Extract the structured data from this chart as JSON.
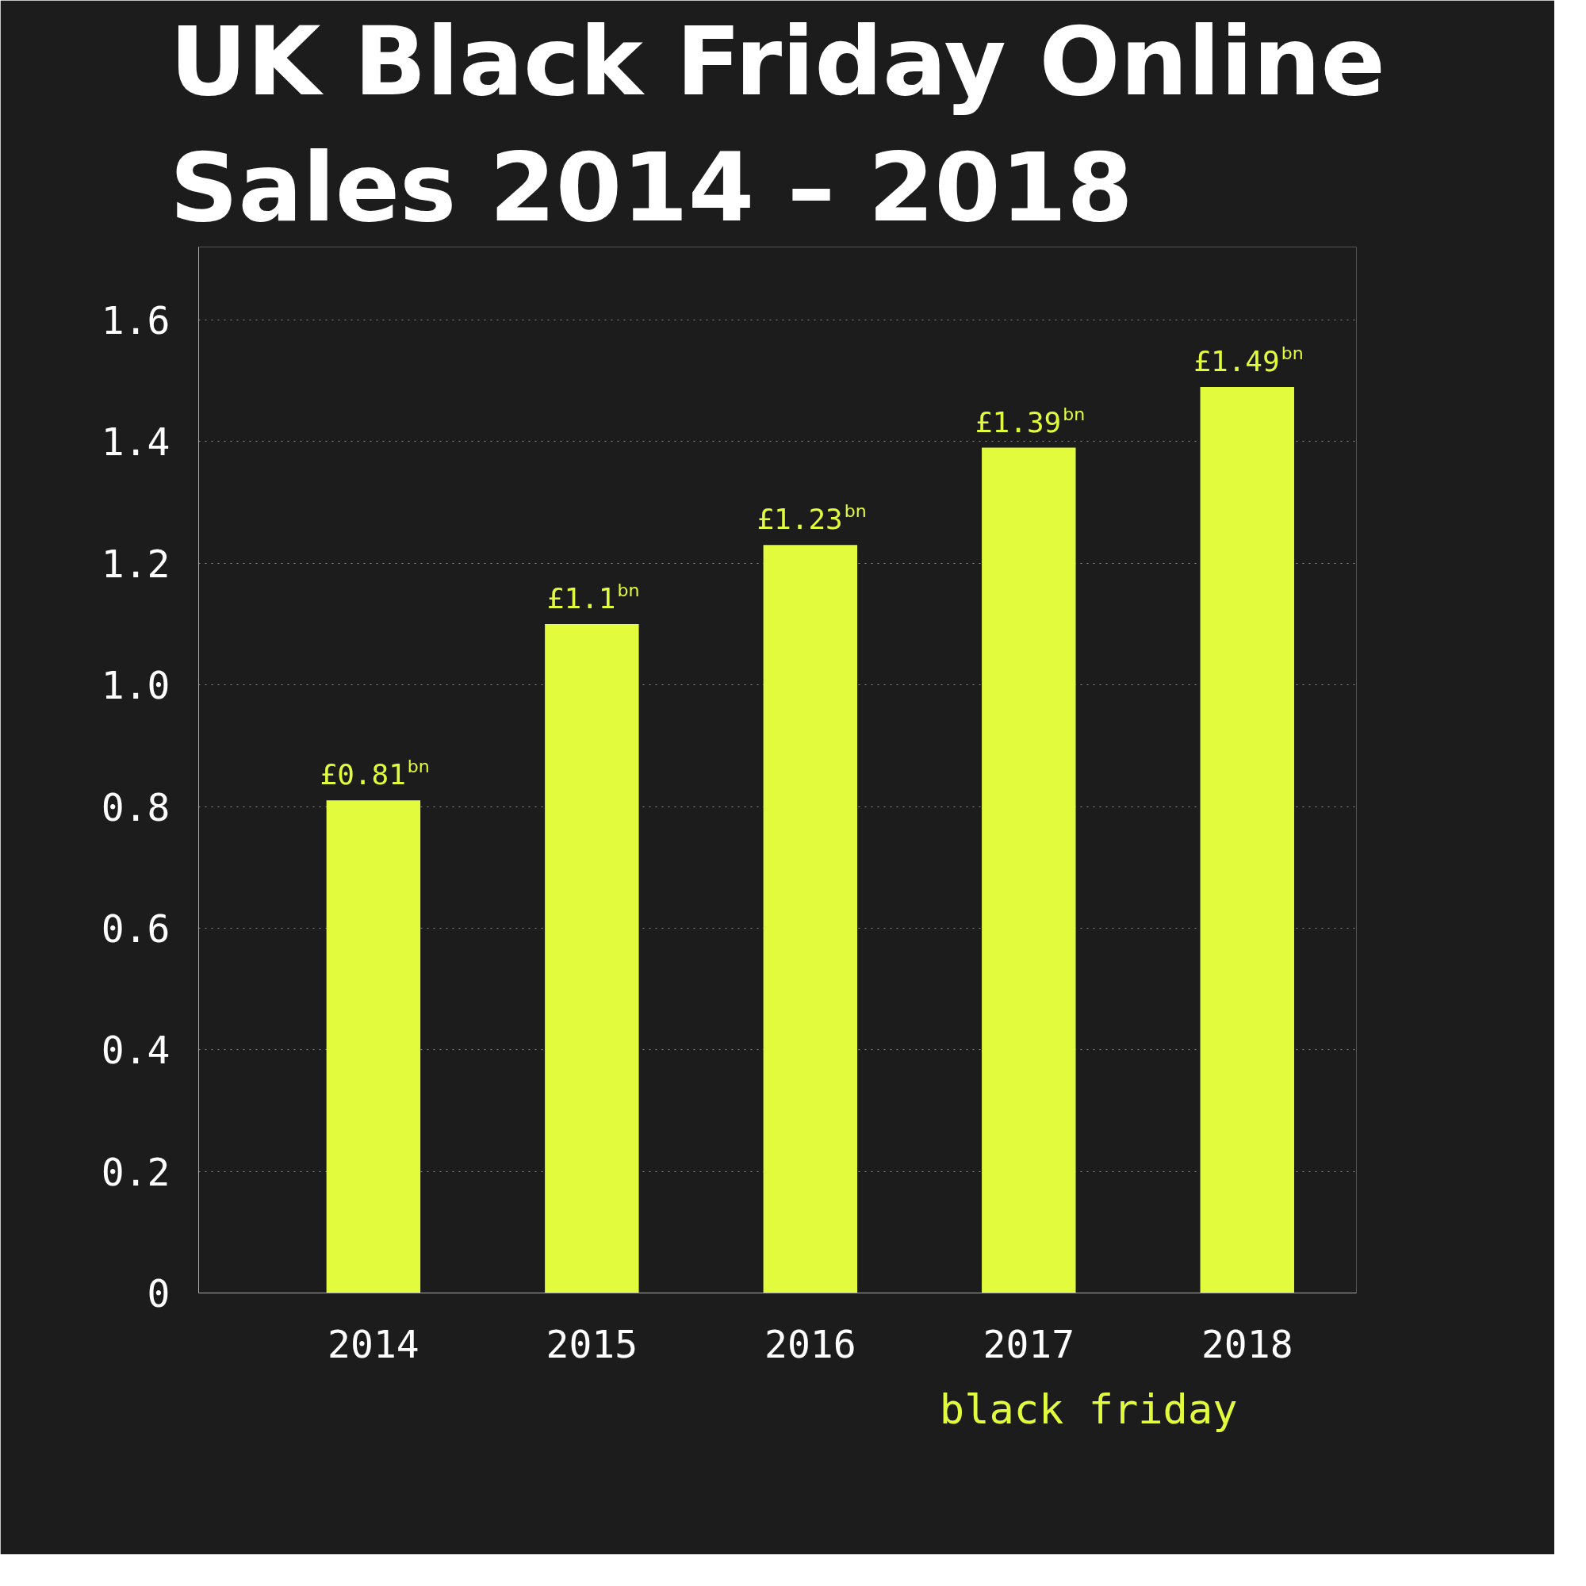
{
  "chart_data": {
    "type": "bar",
    "title": "UK Black Friday Online\nSales 2014 – 2018",
    "categories": [
      "2014",
      "2015",
      "2016",
      "2017",
      "2018"
    ],
    "values": [
      0.81,
      1.1,
      1.23,
      1.39,
      1.49
    ],
    "value_labels": [
      "£0.81$^{bn}$",
      "£1.1$^{bn}$",
      "£1.23$^{bn}$",
      "£1.39$^{bn}$",
      "£1.49$^{bn}$"
    ],
    "color": "#e2fb3c",
    "ylim": [
      0,
      1.72
    ],
    "yticks": [
      0,
      0.2,
      0.4,
      0.6,
      0.8,
      {
        "value": 1,
        "label": "1.0"
      },
      1.2,
      1.4,
      1.6
    ],
    "grid": "y",
    "annotations": [
      "black friday"
    ]
  }
}
